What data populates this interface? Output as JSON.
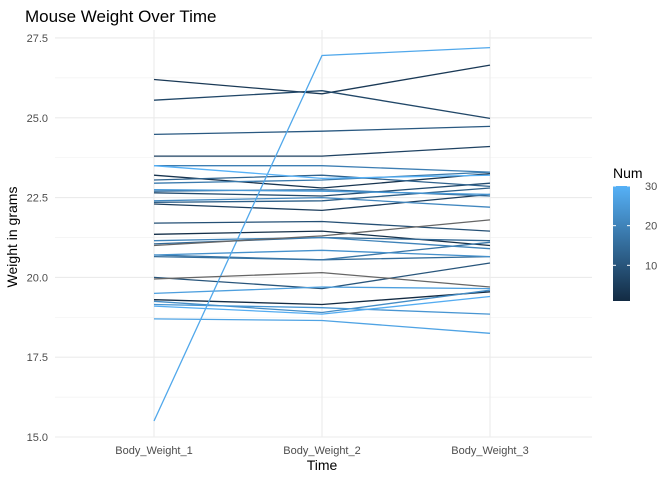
{
  "chart_data": {
    "type": "line",
    "title": "Mouse Weight Over Time",
    "xlabel": "Time",
    "ylabel": "Weight in grams",
    "categories": [
      "Body_Weight_1",
      "Body_Weight_2",
      "Body_Weight_3"
    ],
    "ylim": [
      15.0,
      27.75
    ],
    "yticks": [
      15.0,
      17.5,
      20.0,
      22.5,
      25.0,
      27.5
    ],
    "ytick_labels": [
      "15.0",
      "17.5",
      "20.0",
      "22.5",
      "25.0",
      "27.5"
    ],
    "grid": true,
    "legend": {
      "title": "Num",
      "position": "right",
      "range": [
        1,
        30
      ],
      "ticks": [
        10,
        20,
        30
      ],
      "tick_labels": [
        "10",
        "20",
        "30"
      ],
      "color_low": "#132B43",
      "color_high": "#56B1F7"
    },
    "missing_color": "#666666",
    "series": [
      {
        "num": 1,
        "values": [
          19.3,
          19.15,
          19.55
        ]
      },
      {
        "num": 2,
        "values": [
          21.35,
          21.45,
          21.0
        ]
      },
      {
        "num": 3,
        "values": [
          23.2,
          22.8,
          23.25
        ]
      },
      {
        "num": 4,
        "values": [
          26.2,
          25.75,
          26.65
        ]
      },
      {
        "num": 5,
        "values": [
          22.3,
          22.1,
          22.6
        ]
      },
      {
        "num": 6,
        "values": [
          23.8,
          23.8,
          24.1
        ]
      },
      {
        "num": 7,
        "values": [
          25.55,
          25.85,
          24.98
        ]
      },
      {
        "num": 8,
        "values": [
          22.65,
          22.55,
          22.95
        ]
      },
      {
        "num": 9,
        "values": [
          21.7,
          21.75,
          21.45
        ]
      },
      {
        "num": 10,
        "values": [
          20.0,
          19.65,
          20.45
        ]
      },
      {
        "num": 11,
        "values": [
          24.48,
          24.58,
          24.73
        ]
      },
      {
        "num": 12,
        "values": [
          22.35,
          22.4,
          22.8
        ]
      },
      {
        "num": 13,
        "values": [
          23.05,
          23.2,
          22.85
        ]
      },
      {
        "num": 14,
        "values": [
          21.05,
          21.25,
          21.15
        ]
      },
      {
        "num": 15,
        "values": [
          20.65,
          20.55,
          20.65
        ]
      },
      {
        "num": 16,
        "values": [
          22.7,
          22.75,
          22.55
        ]
      },
      {
        "num": 17,
        "values": [
          20.7,
          20.55,
          21.1
        ]
      },
      {
        "num": 18,
        "values": [
          22.95,
          23.05,
          23.3
        ]
      },
      {
        "num": 19,
        "values": [
          23.5,
          23.5,
          23.3
        ]
      },
      {
        "num": 20,
        "values": [
          21.15,
          21.25,
          20.9
        ]
      },
      {
        "num": 21,
        "values": [
          22.4,
          22.5,
          22.2
        ]
      },
      {
        "num": 22,
        "values": [
          19.25,
          18.9,
          19.6
        ]
      },
      {
        "num": 23,
        "values": [
          20.7,
          20.85,
          20.65
        ]
      },
      {
        "num": 24,
        "values": [
          19.15,
          19.05,
          18.85
        ]
      },
      {
        "num": 25,
        "values": [
          22.75,
          22.7,
          22.6
        ]
      },
      {
        "num": 26,
        "values": [
          19.5,
          19.7,
          19.65
        ]
      },
      {
        "num": 27,
        "values": [
          18.7,
          18.65,
          18.25
        ]
      },
      {
        "num": 28,
        "values": [
          15.5,
          26.95,
          27.2
        ]
      },
      {
        "num": 29,
        "values": [
          19.1,
          18.85,
          19.4
        ]
      },
      {
        "num": 30,
        "values": [
          23.5,
          23.1,
          23.2
        ]
      },
      {
        "num": null,
        "values": [
          21.0,
          21.3,
          21.8
        ]
      },
      {
        "num": null,
        "values": [
          19.95,
          20.15,
          19.7
        ]
      }
    ]
  }
}
